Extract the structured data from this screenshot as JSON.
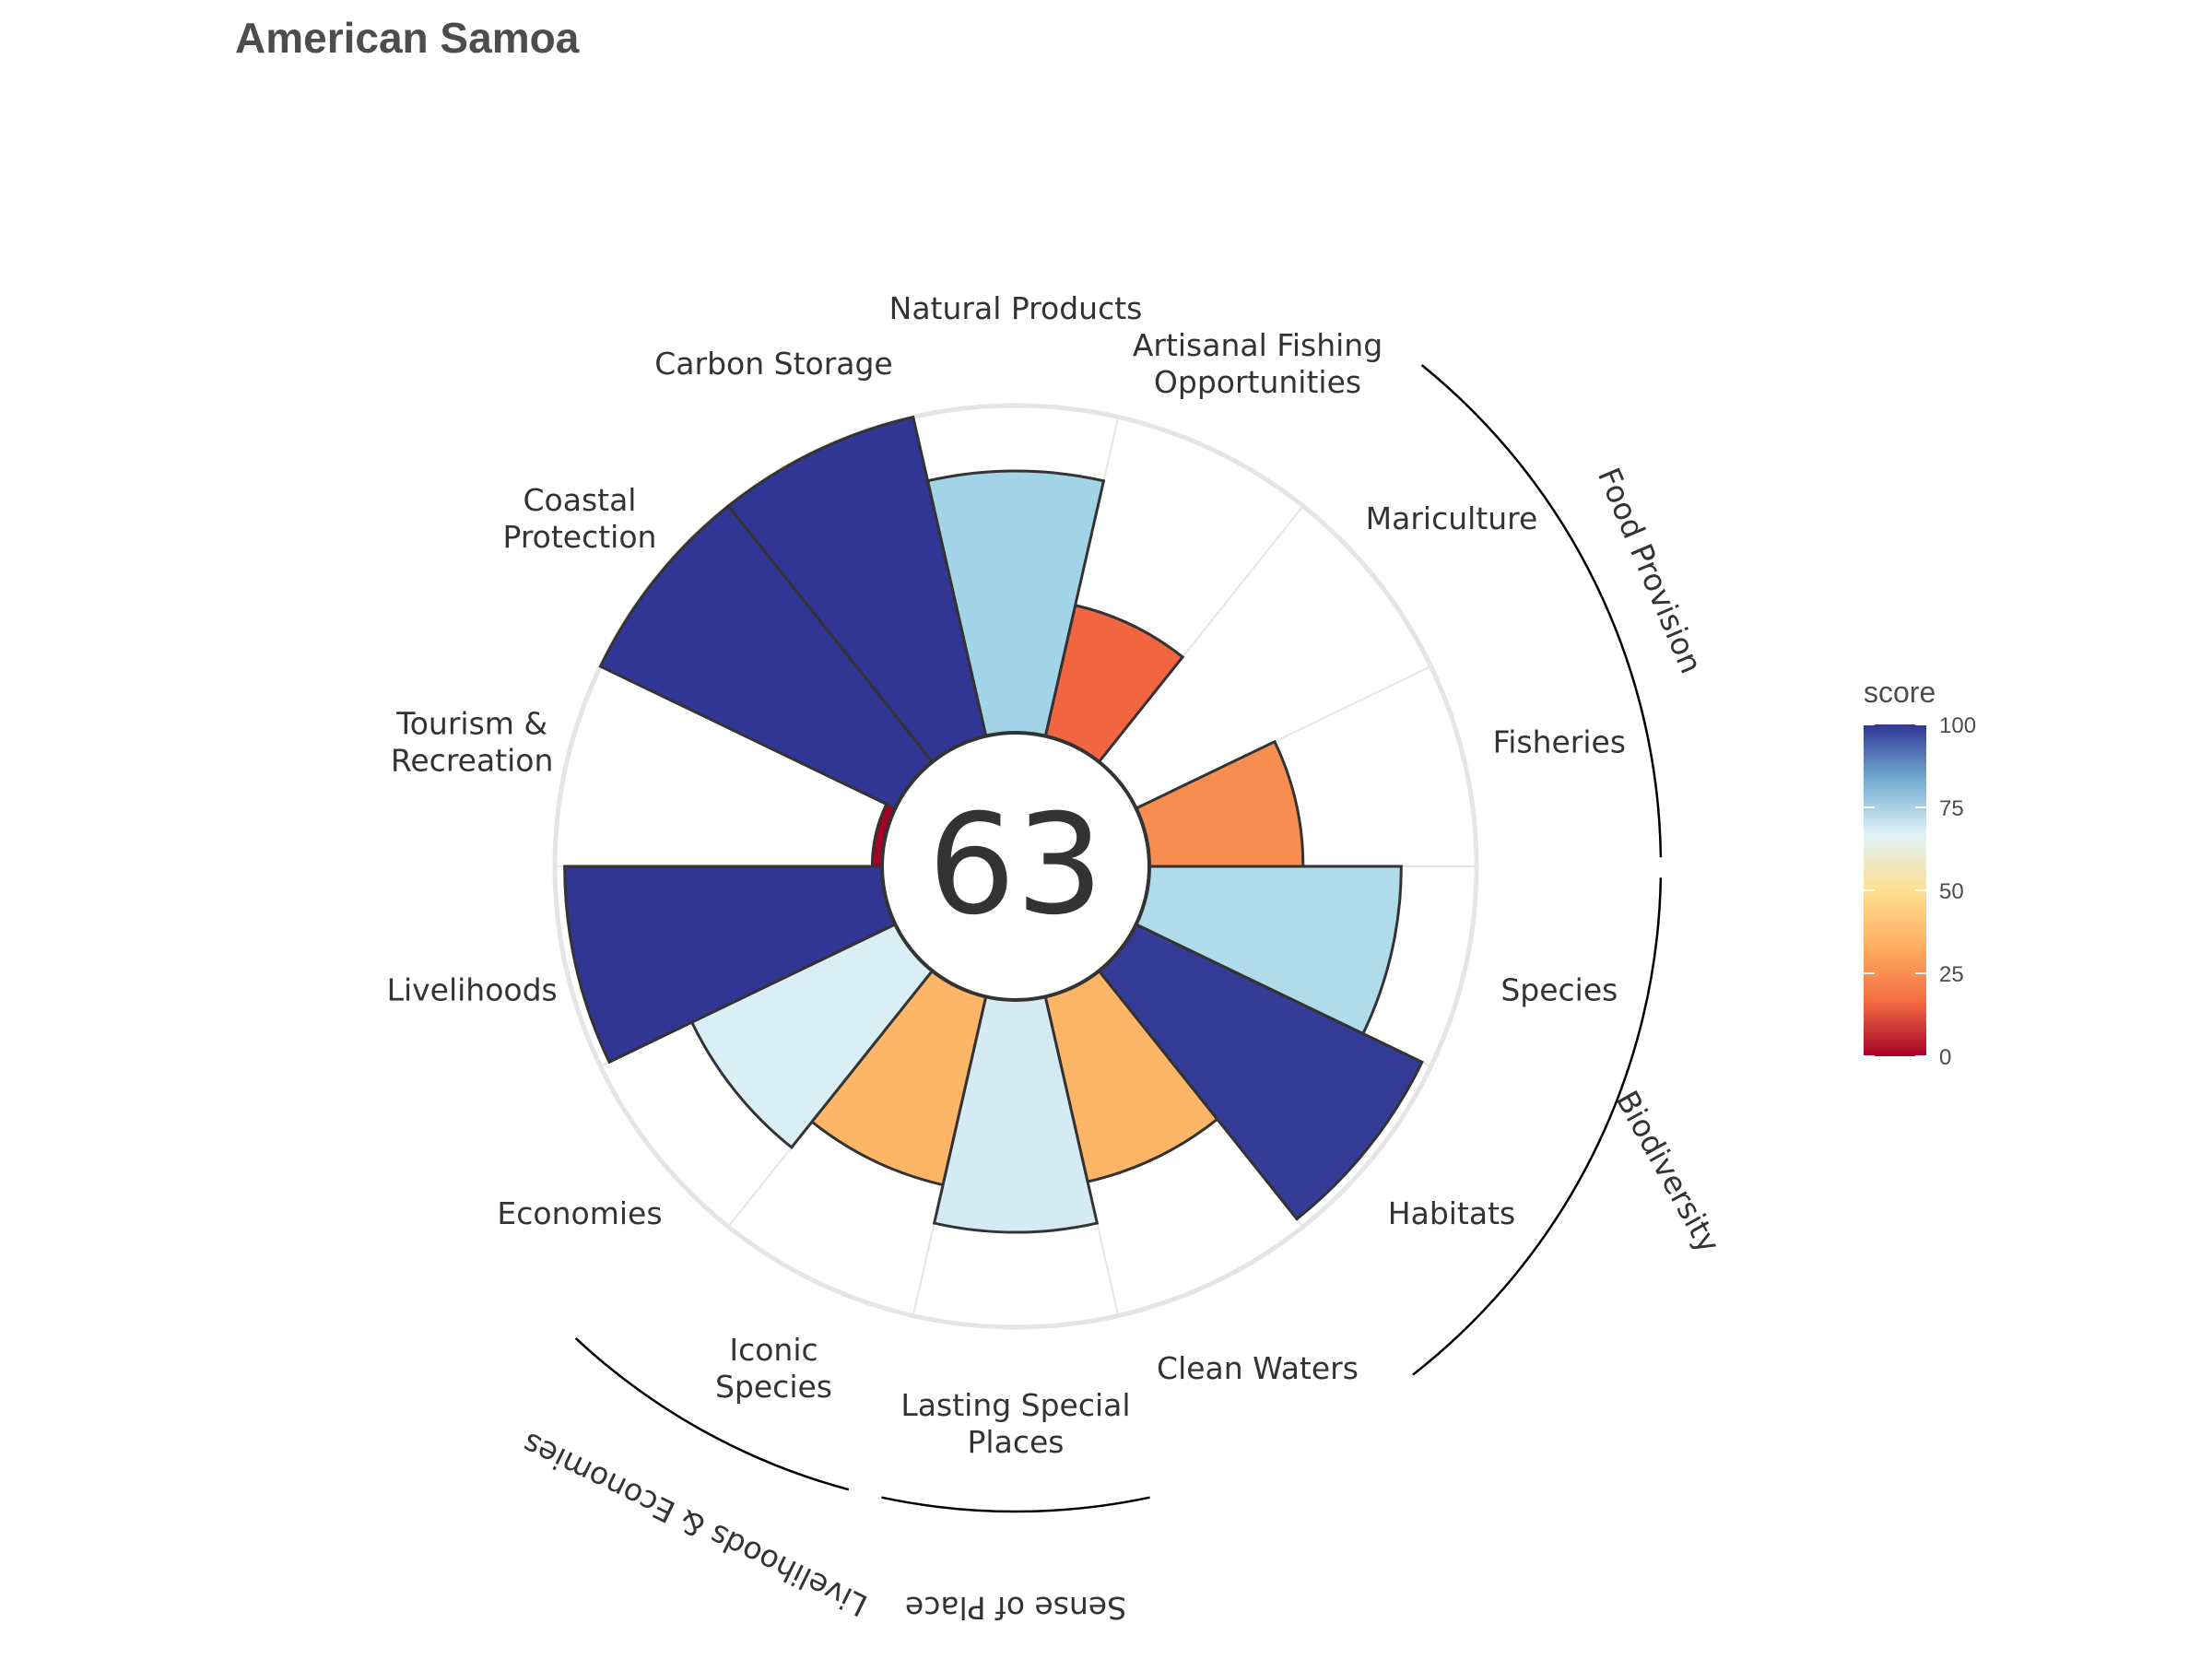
{
  "chart_data": {
    "type": "polar-bar",
    "title": "American Samoa",
    "overall_score": "63",
    "max_score": 100,
    "goals": [
      {
        "id": "fisheries",
        "label": [
          "Fisheries"
        ],
        "score": 47,
        "color": "#f88d52"
      },
      {
        "id": "mariculture",
        "label": [
          "Mariculture"
        ],
        "score": 0,
        "color": "#a50026"
      },
      {
        "id": "artisanal",
        "label": [
          "Artisanal Fishing",
          "Opportunities"
        ],
        "score": 41,
        "color": "#f16640"
      },
      {
        "id": "natural-products",
        "label": [
          "Natural Products"
        ],
        "score": 80,
        "color": "#a3d3e6"
      },
      {
        "id": "carbon-storage",
        "label": [
          "Carbon Storage"
        ],
        "score": 100,
        "color": "#313695"
      },
      {
        "id": "coastal-protection",
        "label": [
          "Coastal",
          "Protection"
        ],
        "score": 100,
        "color": "#313695"
      },
      {
        "id": "tourism",
        "label": [
          "Tourism &",
          "Recreation"
        ],
        "score": 3,
        "color": "#a50026"
      },
      {
        "id": "livelihoods",
        "label": [
          "Livelihoods"
        ],
        "score": 97,
        "color": "#313695"
      },
      {
        "id": "economies",
        "label": [
          "Economies"
        ],
        "score": 69,
        "color": "#daeef5"
      },
      {
        "id": "iconic-species",
        "label": [
          "Iconic",
          "Species"
        ],
        "score": 59,
        "color": "#fdb567"
      },
      {
        "id": "lasting-special-places",
        "label": [
          "Lasting Special",
          "Places"
        ],
        "score": 71,
        "color": "#d4ebf4"
      },
      {
        "id": "clean-waters",
        "label": [
          "Clean Waters"
        ],
        "score": 58,
        "color": "#fdb567"
      },
      {
        "id": "habitats",
        "label": [
          "Habitats"
        ],
        "score": 97,
        "color": "#343c98"
      },
      {
        "id": "species",
        "label": [
          "Species"
        ],
        "score": 77,
        "color": "#b0dbea"
      }
    ],
    "groups": [
      {
        "id": "food-provision",
        "label": "Food Provision"
      },
      {
        "id": "biodiversity",
        "label": "Biodiversity"
      },
      {
        "id": "sense-of-place",
        "label": "Sense of Place"
      },
      {
        "id": "livelihoods-economies",
        "label": "Livelihoods & Economies"
      }
    ],
    "legend": {
      "title": "score",
      "ticks": [
        "0",
        "25",
        "50",
        "75",
        "100"
      ],
      "colors": [
        "#a50026",
        "#f46d43",
        "#fdae61",
        "#fee090",
        "#e0f3f8",
        "#74add1",
        "#313695"
      ]
    }
  }
}
